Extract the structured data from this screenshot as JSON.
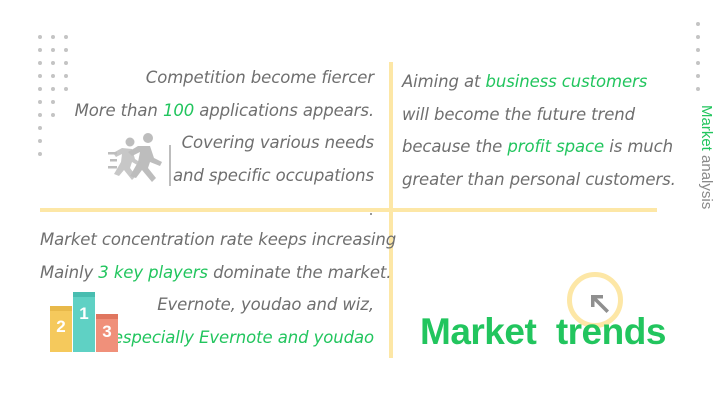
{
  "quadrant_top_left": {
    "lines": [
      {
        "pre": "Competition become fiercer",
        "hl": "",
        "post": ""
      },
      {
        "pre": "More than ",
        "hl": "100",
        "post": " applications appears."
      },
      {
        "pre": "Covering various needs",
        "hl": "",
        "post": ""
      },
      {
        "pre": "and specific occupations",
        "hl": "",
        "post": ""
      }
    ]
  },
  "quadrant_top_right": {
    "lines": [
      {
        "pre": "Aiming at ",
        "hl": "business customers",
        "post": ""
      },
      {
        "pre": "will become the future trend",
        "hl": "",
        "post": ""
      },
      {
        "pre": "because the ",
        "hl": "profit space",
        "post": " is much"
      },
      {
        "pre": "greater than personal customers.",
        "hl": "",
        "post": ""
      }
    ]
  },
  "quadrant_bottom_left": {
    "lines": [
      {
        "pre": "Market concentration rate keeps increasing",
        "hl": "",
        "post": ""
      },
      {
        "pre": "Mainly ",
        "hl": "3 key players",
        "post": " dominate the market."
      },
      {
        "pre": "Evernote, youdao and wiz,",
        "hl": "",
        "post": ""
      },
      {
        "pre": "",
        "hl": "especially Evernote and youdao",
        "post": ""
      }
    ]
  },
  "podium": {
    "first": "1",
    "second": "2",
    "third": "3"
  },
  "section_title": "Market  trends",
  "side_label": {
    "highlight": "Market",
    "rest": " analysis"
  },
  "colors": {
    "accent": "#22c55e",
    "divider": "#fde7a6",
    "text": "#6f6f6f",
    "gold": "#f5c95c",
    "teal": "#5fd1c4",
    "salmon": "#f0907a"
  },
  "icons": [
    "runner-icon",
    "podium-icon",
    "trend-arrow-icon"
  ]
}
